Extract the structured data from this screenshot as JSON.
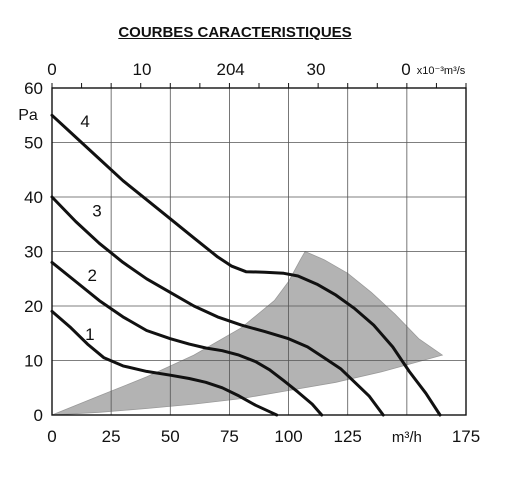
{
  "chart_data": {
    "type": "line",
    "title": "COURBES CARACTERISTIQUES",
    "xlabel": "m³/h",
    "ylabel": "Pa",
    "xlim": [
      0,
      175
    ],
    "ylim": [
      0,
      60
    ],
    "x_ticks": [
      "0",
      "25",
      "50",
      "75",
      "100",
      "125",
      "175"
    ],
    "y_ticks": [
      "0",
      "10",
      "20",
      "30",
      "40",
      "50",
      "60"
    ],
    "x2_ticks": [
      "0",
      "10",
      "20",
      "4",
      "30",
      "0"
    ],
    "x2_label": "x10⁻³m³/s",
    "grid": true,
    "series": [
      {
        "name": "1",
        "points": [
          [
            0,
            19
          ],
          [
            8,
            16
          ],
          [
            15,
            13
          ],
          [
            22,
            10.5
          ],
          [
            30,
            9
          ],
          [
            40,
            8
          ],
          [
            50,
            7.3
          ],
          [
            58,
            6.7
          ],
          [
            65,
            6
          ],
          [
            72,
            5
          ],
          [
            79,
            3.5
          ],
          [
            86,
            1.8
          ],
          [
            92,
            0.6
          ],
          [
            95,
            0
          ]
        ]
      },
      {
        "name": "2",
        "points": [
          [
            0,
            28
          ],
          [
            10,
            24.5
          ],
          [
            20,
            21
          ],
          [
            30,
            18
          ],
          [
            40,
            15.5
          ],
          [
            50,
            14
          ],
          [
            58,
            13
          ],
          [
            65,
            12.3
          ],
          [
            72,
            11.8
          ],
          [
            79,
            11
          ],
          [
            86,
            9.8
          ],
          [
            92,
            8.3
          ],
          [
            98,
            6.3
          ],
          [
            104,
            4.2
          ],
          [
            110,
            2
          ],
          [
            114,
            0
          ]
        ]
      },
      {
        "name": "3",
        "points": [
          [
            0,
            40
          ],
          [
            10,
            35.5
          ],
          [
            20,
            31.5
          ],
          [
            30,
            28
          ],
          [
            40,
            25
          ],
          [
            50,
            22.5
          ],
          [
            60,
            20
          ],
          [
            70,
            18
          ],
          [
            80,
            16.5
          ],
          [
            90,
            15.3
          ],
          [
            100,
            14
          ],
          [
            108,
            12.5
          ],
          [
            115,
            10.5
          ],
          [
            122,
            8.5
          ],
          [
            128,
            6
          ],
          [
            134,
            3.5
          ],
          [
            140,
            0
          ]
        ]
      },
      {
        "name": "4",
        "points": [
          [
            0,
            55
          ],
          [
            10,
            51
          ],
          [
            20,
            47
          ],
          [
            30,
            43
          ],
          [
            40,
            39.5
          ],
          [
            50,
            36
          ],
          [
            60,
            32.5
          ],
          [
            70,
            29
          ],
          [
            76,
            27.3
          ],
          [
            82,
            26.3
          ],
          [
            90,
            26.2
          ],
          [
            98,
            26
          ],
          [
            104,
            25.5
          ],
          [
            112,
            24
          ],
          [
            120,
            22
          ],
          [
            128,
            19.5
          ],
          [
            136,
            16.5
          ],
          [
            144,
            12.5
          ],
          [
            151,
            8
          ],
          [
            158,
            4
          ],
          [
            164,
            0
          ]
        ]
      }
    ],
    "shaded_region": {
      "color": "#b3b3b3",
      "upper": [
        [
          0,
          0
        ],
        [
          20,
          3.5
        ],
        [
          40,
          7
        ],
        [
          60,
          11
        ],
        [
          80,
          16
        ],
        [
          94,
          21
        ],
        [
          100,
          24.5
        ],
        [
          105,
          28.5
        ],
        [
          107,
          30
        ],
        [
          115,
          28.5
        ],
        [
          125,
          26
        ],
        [
          135,
          22.5
        ],
        [
          145,
          18.5
        ],
        [
          155,
          14
        ],
        [
          165,
          11
        ]
      ],
      "lower": [
        [
          165,
          11
        ],
        [
          140,
          8
        ],
        [
          120,
          6
        ],
        [
          100,
          4.5
        ],
        [
          80,
          3
        ],
        [
          60,
          2
        ],
        [
          40,
          1.2
        ],
        [
          20,
          0.5
        ],
        [
          0,
          0
        ]
      ]
    },
    "colors": {
      "curve": "#111111",
      "grid": "#555555",
      "axis": "#111111"
    }
  }
}
